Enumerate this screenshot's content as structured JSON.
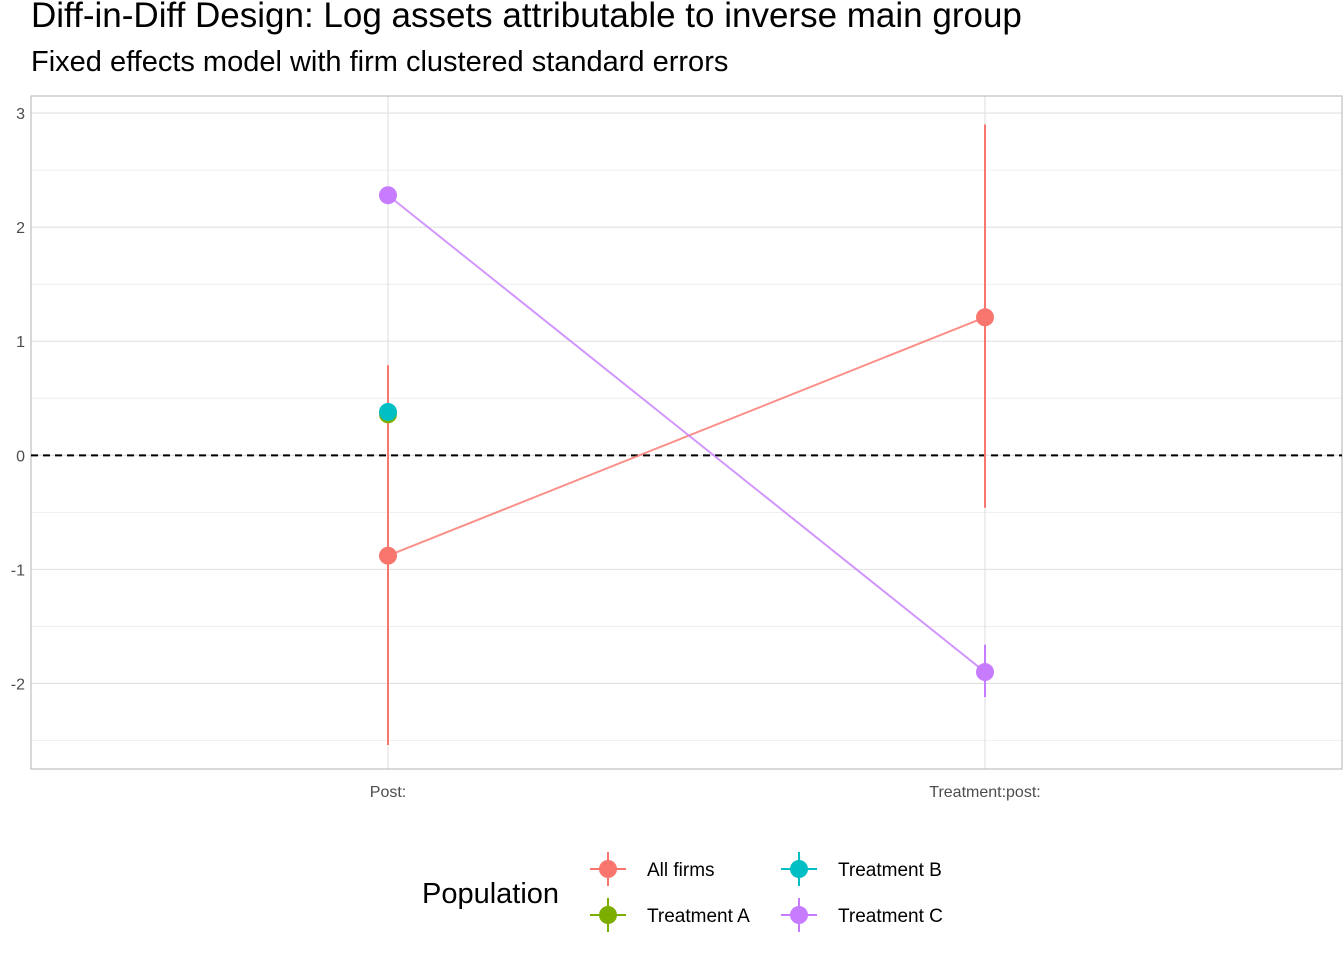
{
  "chart_data": {
    "type": "scatter",
    "title": "Diff-in-Diff Design: Log assets attributable to inverse main group",
    "subtitle": "Fixed effects model with firm clustered standard errors",
    "xlabel": "",
    "ylabel": "",
    "categories": [
      "Post:",
      "Treatment:post:"
    ],
    "ylim": [
      -2.75,
      3.15
    ],
    "yticks": [
      -2,
      -1,
      0,
      1,
      2,
      3
    ],
    "reference_line": {
      "y": 0,
      "style": "dashed"
    },
    "grid": true,
    "legend": {
      "title": "Population",
      "position": "bottom"
    },
    "series": [
      {
        "name": "All firms",
        "color": "#F8766D",
        "points": [
          {
            "category": "Post:",
            "estimate": -0.88,
            "low": -2.54,
            "high": 0.79
          },
          {
            "category": "Treatment:post:",
            "estimate": 1.21,
            "low": -0.46,
            "high": 2.9
          }
        ]
      },
      {
        "name": "Treatment A",
        "color": "#7CAE00",
        "points": [
          {
            "category": "Post:",
            "estimate": 0.36,
            "low": 0.33,
            "high": 0.39
          }
        ]
      },
      {
        "name": "Treatment B",
        "color": "#00BFC4",
        "points": [
          {
            "category": "Post:",
            "estimate": 0.38,
            "low": 0.35,
            "high": 0.41
          }
        ]
      },
      {
        "name": "Treatment C",
        "color": "#C77CFF",
        "points": [
          {
            "category": "Post:",
            "estimate": 2.28,
            "low": 2.25,
            "high": 2.31
          },
          {
            "category": "Treatment:post:",
            "estimate": -1.9,
            "low": -2.12,
            "high": -1.66
          }
        ]
      }
    ],
    "legend_layout": [
      [
        "All firms",
        "Treatment B"
      ],
      [
        "Treatment A",
        "Treatment C"
      ]
    ]
  }
}
